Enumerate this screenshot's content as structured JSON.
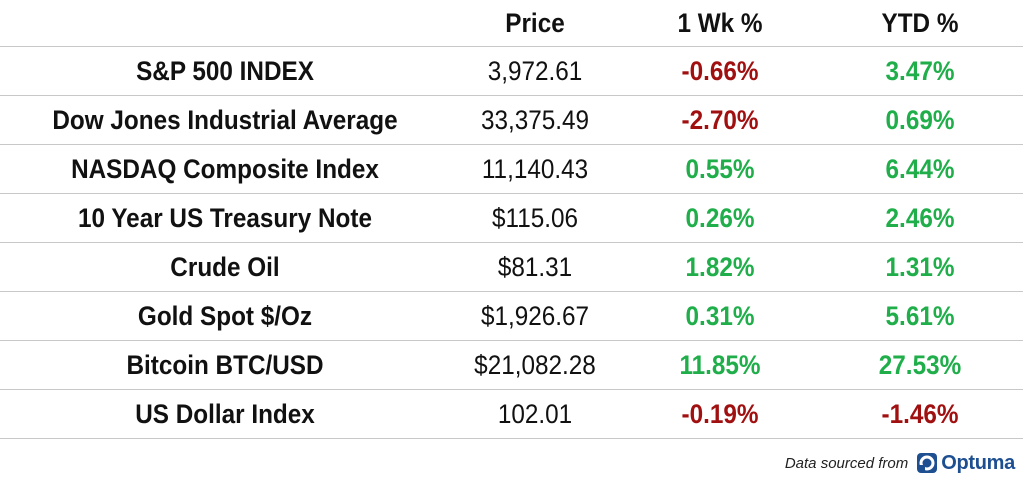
{
  "header": {
    "name": "",
    "price": "Price",
    "week": "1 Wk %",
    "ytd": "YTD %"
  },
  "rows": [
    {
      "name": "S&P 500 INDEX",
      "price": "3,972.61",
      "week": "-0.66%",
      "ytd": "3.47%"
    },
    {
      "name": "Dow Jones Industrial Average",
      "price": "33,375.49",
      "week": "-2.70%",
      "ytd": "0.69%"
    },
    {
      "name": "NASDAQ Composite Index",
      "price": "11,140.43",
      "week": "0.55%",
      "ytd": "6.44%"
    },
    {
      "name": "10 Year US Treasury Note",
      "price": "$115.06",
      "week": "0.26%",
      "ytd": "2.46%"
    },
    {
      "name": "Crude Oil",
      "price": "$81.31",
      "week": "1.82%",
      "ytd": "1.31%"
    },
    {
      "name": "Gold Spot $/Oz",
      "price": "$1,926.67",
      "week": "0.31%",
      "ytd": "5.61%"
    },
    {
      "name": "Bitcoin BTC/USD",
      "price": "$21,082.28",
      "week": "11.85%",
      "ytd": "27.53%"
    },
    {
      "name": "US Dollar Index",
      "price": "102.01",
      "week": "-0.19%",
      "ytd": "-1.46%"
    }
  ],
  "footer": {
    "source_text": "Data sourced from",
    "logo_text": "Optuma",
    "logo_icon": "optuma-logo-icon"
  },
  "colors": {
    "negative": "#a01010",
    "positive": "#1fae4a",
    "brand": "#1d4f91"
  }
}
